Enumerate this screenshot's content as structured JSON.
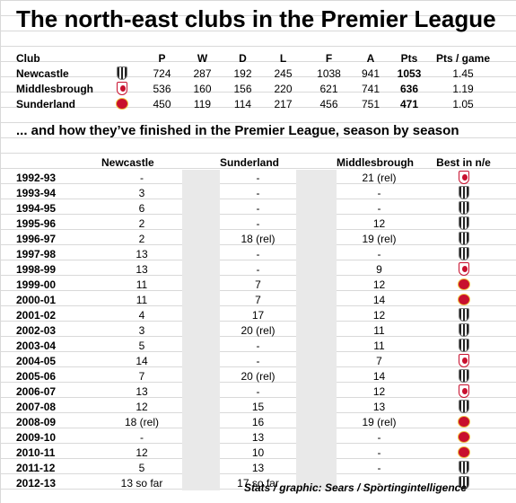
{
  "title": "The north-east clubs in the Premier League",
  "summary": {
    "headers": [
      "Club",
      "P",
      "W",
      "D",
      "L",
      "F",
      "A",
      "Pts",
      "Pts / game"
    ],
    "rows": [
      {
        "club": "Newcastle",
        "badge": "newcastle",
        "P": "724",
        "W": "287",
        "D": "192",
        "L": "245",
        "F": "1038",
        "A": "941",
        "Pts": "1053",
        "ppg": "1.45"
      },
      {
        "club": "Middlesbrough",
        "badge": "middlesbrough",
        "P": "536",
        "W": "160",
        "D": "156",
        "L": "220",
        "F": "621",
        "A": "741",
        "Pts": "636",
        "ppg": "1.19"
      },
      {
        "club": "Sunderland",
        "badge": "sunderland",
        "P": "450",
        "W": "119",
        "D": "114",
        "L": "217",
        "F": "456",
        "A": "751",
        "Pts": "471",
        "ppg": "1.05"
      }
    ]
  },
  "subtitle": "... and how they’ve finished in the Premier League, season by season",
  "seasons_table": {
    "headers": {
      "newcastle": "Newcastle",
      "sunderland": "Sunderland",
      "middlesbrough": "Middlesbrough",
      "best": "Best in n/e"
    },
    "rows": [
      {
        "season": "1992-93",
        "newcastle": "-",
        "sunderland": "-",
        "middlesbrough": "21 (rel)",
        "best": "middlesbrough"
      },
      {
        "season": "1993-94",
        "newcastle": "3",
        "sunderland": "-",
        "middlesbrough": "-",
        "best": "newcastle"
      },
      {
        "season": "1994-95",
        "newcastle": "6",
        "sunderland": "-",
        "middlesbrough": "-",
        "best": "newcastle"
      },
      {
        "season": "1995-96",
        "newcastle": "2",
        "sunderland": "-",
        "middlesbrough": "12",
        "best": "newcastle"
      },
      {
        "season": "1996-97",
        "newcastle": "2",
        "sunderland": "18 (rel)",
        "middlesbrough": "19 (rel)",
        "best": "newcastle"
      },
      {
        "season": "1997-98",
        "newcastle": "13",
        "sunderland": "-",
        "middlesbrough": "-",
        "best": "newcastle"
      },
      {
        "season": "1998-99",
        "newcastle": "13",
        "sunderland": "-",
        "middlesbrough": "9",
        "best": "middlesbrough"
      },
      {
        "season": "1999-00",
        "newcastle": "11",
        "sunderland": "7",
        "middlesbrough": "12",
        "best": "sunderland"
      },
      {
        "season": "2000-01",
        "newcastle": "11",
        "sunderland": "7",
        "middlesbrough": "14",
        "best": "sunderland"
      },
      {
        "season": "2001-02",
        "newcastle": "4",
        "sunderland": "17",
        "middlesbrough": "12",
        "best": "newcastle"
      },
      {
        "season": "2002-03",
        "newcastle": "3",
        "sunderland": "20 (rel)",
        "middlesbrough": "11",
        "best": "newcastle"
      },
      {
        "season": "2003-04",
        "newcastle": "5",
        "sunderland": "-",
        "middlesbrough": "11",
        "best": "newcastle"
      },
      {
        "season": "2004-05",
        "newcastle": "14",
        "sunderland": "-",
        "middlesbrough": "7",
        "best": "middlesbrough"
      },
      {
        "season": "2005-06",
        "newcastle": "7",
        "sunderland": "20 (rel)",
        "middlesbrough": "14",
        "best": "newcastle"
      },
      {
        "season": "2006-07",
        "newcastle": "13",
        "sunderland": "-",
        "middlesbrough": "12",
        "best": "middlesbrough"
      },
      {
        "season": "2007-08",
        "newcastle": "12",
        "sunderland": "15",
        "middlesbrough": "13",
        "best": "newcastle"
      },
      {
        "season": "2008-09",
        "newcastle": "18 (rel)",
        "sunderland": "16",
        "middlesbrough": "19 (rel)",
        "best": "sunderland"
      },
      {
        "season": "2009-10",
        "newcastle": "-",
        "sunderland": "13",
        "middlesbrough": "-",
        "best": "sunderland"
      },
      {
        "season": "2010-11",
        "newcastle": "12",
        "sunderland": "10",
        "middlesbrough": "-",
        "best": "sunderland"
      },
      {
        "season": "2011-12",
        "newcastle": "5",
        "sunderland": "13",
        "middlesbrough": "-",
        "best": "newcastle"
      },
      {
        "season": "2012-13",
        "newcastle": "13 so far",
        "sunderland": "17 so far",
        "middlesbrough": "-",
        "best": "newcastle"
      }
    ]
  },
  "credit": "Stats / graphic: Sears / Sportingintelligence",
  "colors": {
    "newcastle": "#222222",
    "sunderland": "#c8102e",
    "middlesbrough": "#c8102e",
    "grid": "#d9d9d9",
    "shade": "#e9e9e9"
  }
}
